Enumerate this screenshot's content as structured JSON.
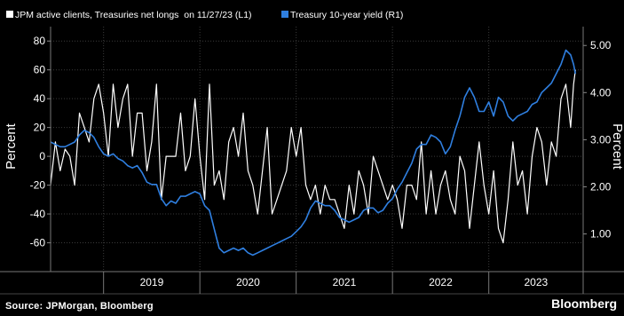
{
  "chart_data": {
    "type": "line",
    "legend": {
      "position": "top-left",
      "entries": [
        {
          "label": "JPM active clients, Treasuries net longs  on 11/27/23 (L1)",
          "color": "#ffffff"
        },
        {
          "label": "Treasury 10-year yield (R1)",
          "color": "#2f7fe0"
        }
      ]
    },
    "left_axis": {
      "label": "Percent",
      "range": [
        -80,
        90
      ],
      "ticks": [
        "-60",
        "-40",
        "-20",
        "0",
        "20",
        "40",
        "60",
        "80"
      ]
    },
    "right_axis": {
      "label": "Percent",
      "range": [
        0.2,
        5.4
      ],
      "ticks": [
        "1.00",
        "2.00",
        "3.00",
        "4.00",
        "5.00"
      ]
    },
    "x_axis": {
      "categories": [
        "2019",
        "2020",
        "2021",
        "2022",
        "2023"
      ],
      "range": [
        "2018-07",
        "2023-12"
      ]
    },
    "grid": true,
    "series": [
      {
        "name": "JPM active clients, Treasuries net longs  on 11/27/23 (L1)",
        "axis": "left",
        "color": "#ffffff",
        "x": [
          2018.45,
          2018.5,
          2018.55,
          2018.6,
          2018.65,
          2018.7,
          2018.75,
          2018.8,
          2018.85,
          2018.9,
          2018.95,
          2019.0,
          2019.05,
          2019.1,
          2019.15,
          2019.2,
          2019.25,
          2019.3,
          2019.35,
          2019.4,
          2019.45,
          2019.5,
          2019.55,
          2019.6,
          2019.65,
          2019.7,
          2019.75,
          2019.8,
          2019.85,
          2019.9,
          2019.95,
          2020.0,
          2020.05,
          2020.1,
          2020.15,
          2020.2,
          2020.25,
          2020.3,
          2020.35,
          2020.4,
          2020.45,
          2020.5,
          2020.55,
          2020.6,
          2020.65,
          2020.7,
          2020.75,
          2020.8,
          2020.85,
          2020.9,
          2020.95,
          2021.0,
          2021.05,
          2021.1,
          2021.15,
          2021.2,
          2021.25,
          2021.3,
          2021.35,
          2021.4,
          2021.45,
          2021.5,
          2021.55,
          2021.6,
          2021.65,
          2021.7,
          2021.75,
          2021.8,
          2021.85,
          2021.9,
          2021.95,
          2022.0,
          2022.05,
          2022.1,
          2022.15,
          2022.2,
          2022.25,
          2022.3,
          2022.35,
          2022.4,
          2022.45,
          2022.5,
          2022.55,
          2022.6,
          2022.65,
          2022.7,
          2022.75,
          2022.8,
          2022.85,
          2022.9,
          2022.95,
          2023.0,
          2023.05,
          2023.1,
          2023.15,
          2023.2,
          2023.25,
          2023.3,
          2023.35,
          2023.4,
          2023.45,
          2023.5,
          2023.55,
          2023.6,
          2023.65,
          2023.7,
          2023.75,
          2023.8,
          2023.85,
          2023.88,
          2023.9
        ],
        "y": [
          -20,
          10,
          -10,
          5,
          0,
          -20,
          30,
          20,
          10,
          40,
          50,
          30,
          0,
          50,
          20,
          40,
          50,
          0,
          30,
          30,
          -10,
          10,
          50,
          -30,
          0,
          0,
          0,
          30,
          -10,
          0,
          40,
          0,
          -30,
          50,
          -20,
          -10,
          -30,
          10,
          20,
          0,
          30,
          -10,
          -20,
          -40,
          -10,
          20,
          -40,
          -30,
          -20,
          -10,
          20,
          0,
          20,
          -20,
          -30,
          -20,
          -40,
          -20,
          -30,
          -30,
          -40,
          -50,
          -20,
          -40,
          -10,
          -20,
          -40,
          0,
          -10,
          -20,
          -30,
          -20,
          -30,
          -50,
          -20,
          -20,
          -30,
          10,
          -40,
          -10,
          -40,
          -20,
          -10,
          -30,
          -40,
          0,
          -10,
          -50,
          -20,
          10,
          -20,
          -40,
          -10,
          -50,
          -60,
          -30,
          10,
          -20,
          -10,
          -40,
          0,
          20,
          10,
          -20,
          10,
          0,
          40,
          50,
          20,
          50,
          60
        ]
      },
      {
        "name": "Treasury 10-year yield (R1)",
        "axis": "right",
        "color": "#2f7fe0",
        "x": [
          2018.45,
          2018.5,
          2018.55,
          2018.6,
          2018.65,
          2018.7,
          2018.75,
          2018.8,
          2018.85,
          2018.9,
          2018.95,
          2019.0,
          2019.05,
          2019.1,
          2019.15,
          2019.2,
          2019.25,
          2019.3,
          2019.35,
          2019.4,
          2019.45,
          2019.5,
          2019.55,
          2019.6,
          2019.65,
          2019.7,
          2019.75,
          2019.8,
          2019.85,
          2019.9,
          2019.95,
          2020.0,
          2020.05,
          2020.1,
          2020.15,
          2020.2,
          2020.25,
          2020.3,
          2020.35,
          2020.4,
          2020.45,
          2020.5,
          2020.55,
          2020.6,
          2020.65,
          2020.7,
          2020.75,
          2020.8,
          2020.85,
          2020.9,
          2020.95,
          2021.0,
          2021.05,
          2021.1,
          2021.15,
          2021.2,
          2021.25,
          2021.3,
          2021.35,
          2021.4,
          2021.45,
          2021.5,
          2021.55,
          2021.6,
          2021.65,
          2021.7,
          2021.75,
          2021.8,
          2021.85,
          2021.9,
          2021.95,
          2022.0,
          2022.05,
          2022.1,
          2022.15,
          2022.2,
          2022.25,
          2022.3,
          2022.35,
          2022.4,
          2022.45,
          2022.5,
          2022.55,
          2022.6,
          2022.65,
          2022.7,
          2022.75,
          2022.8,
          2022.85,
          2022.9,
          2022.95,
          2023.0,
          2023.05,
          2023.1,
          2023.15,
          2023.2,
          2023.25,
          2023.3,
          2023.35,
          2023.4,
          2023.45,
          2023.5,
          2023.55,
          2023.6,
          2023.65,
          2023.7,
          2023.75,
          2023.8,
          2023.85,
          2023.88,
          2023.9
        ],
        "y": [
          2.95,
          2.9,
          2.85,
          2.85,
          2.9,
          2.95,
          3.1,
          3.2,
          3.15,
          3.05,
          2.85,
          2.7,
          2.65,
          2.7,
          2.6,
          2.55,
          2.45,
          2.4,
          2.45,
          2.3,
          2.1,
          2.05,
          2.05,
          1.75,
          1.6,
          1.7,
          1.65,
          1.8,
          1.8,
          1.85,
          1.9,
          1.85,
          1.6,
          1.5,
          1.1,
          0.7,
          0.6,
          0.65,
          0.7,
          0.65,
          0.7,
          0.6,
          0.55,
          0.6,
          0.65,
          0.7,
          0.75,
          0.8,
          0.85,
          0.9,
          0.95,
          1.05,
          1.15,
          1.3,
          1.55,
          1.7,
          1.65,
          1.6,
          1.6,
          1.5,
          1.35,
          1.3,
          1.25,
          1.3,
          1.35,
          1.5,
          1.55,
          1.55,
          1.45,
          1.5,
          1.65,
          1.75,
          1.95,
          2.1,
          2.3,
          2.5,
          2.8,
          2.9,
          2.9,
          3.1,
          3.05,
          2.95,
          2.7,
          2.85,
          3.2,
          3.5,
          3.9,
          4.1,
          3.9,
          3.6,
          3.6,
          3.8,
          3.5,
          3.9,
          3.8,
          3.5,
          3.4,
          3.5,
          3.55,
          3.6,
          3.75,
          3.8,
          4.0,
          4.1,
          4.2,
          4.4,
          4.6,
          4.9,
          4.8,
          4.6,
          4.4
        ]
      }
    ]
  },
  "footer": {
    "source": "Source: JPMorgan, Bloomberg",
    "brand": "Bloomberg"
  }
}
